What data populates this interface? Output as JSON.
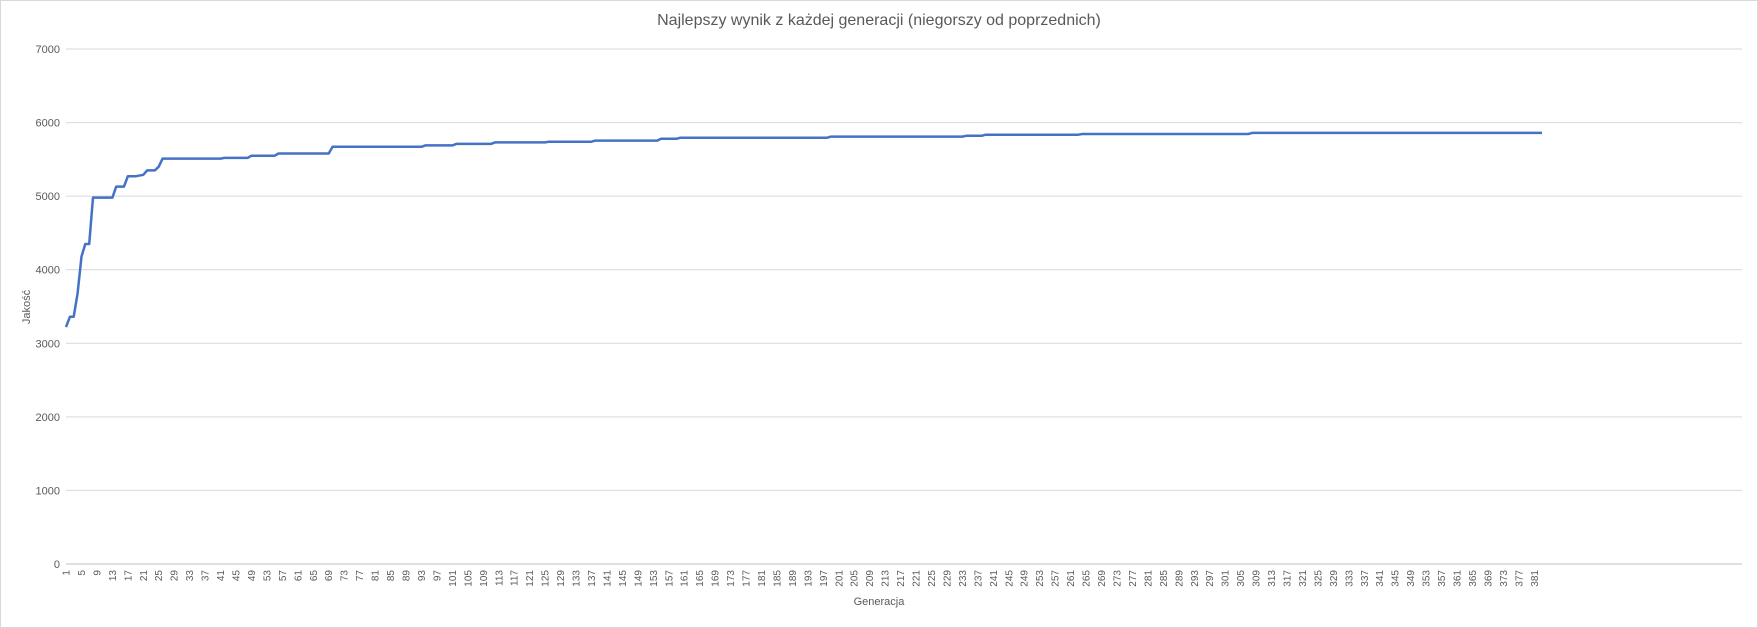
{
  "chart_data": {
    "type": "line",
    "title": "Najlepszy wynik z każdej generacji (niegorszy od poprzednich)",
    "xlabel": "Generacja",
    "ylabel": "Jakość",
    "ylim": [
      0,
      7000
    ],
    "yticks": [
      0,
      1000,
      2000,
      3000,
      4000,
      5000,
      6000,
      7000
    ],
    "xlim": [
      1,
      383
    ],
    "xtick_start": 1,
    "xtick_step": 4,
    "xtick_end": 381,
    "grid": true,
    "legend": "none",
    "line_color": "#4472c4",
    "grid_color": "#d9d9d9",
    "series": [
      {
        "x": [
          1,
          2,
          3,
          4,
          5,
          6,
          7,
          8,
          9,
          13,
          14,
          16,
          17,
          19,
          21,
          22,
          24,
          25,
          26,
          41,
          42,
          48,
          49,
          55,
          56,
          69,
          70,
          93,
          94,
          101,
          102,
          111,
          112,
          125,
          126,
          137,
          138,
          154,
          155,
          159,
          160,
          198,
          199,
          233,
          234,
          238,
          239,
          263,
          264,
          307,
          308,
          383
        ],
        "y": [
          3220,
          3360,
          3360,
          3680,
          4180,
          4350,
          4350,
          4980,
          4980,
          4980,
          5130,
          5130,
          5270,
          5270,
          5290,
          5350,
          5350,
          5400,
          5510,
          5510,
          5520,
          5520,
          5550,
          5550,
          5580,
          5580,
          5670,
          5670,
          5690,
          5690,
          5710,
          5710,
          5730,
          5730,
          5740,
          5740,
          5755,
          5755,
          5780,
          5780,
          5795,
          5795,
          5810,
          5810,
          5820,
          5820,
          5835,
          5835,
          5845,
          5845,
          5860,
          5860
        ]
      }
    ]
  }
}
